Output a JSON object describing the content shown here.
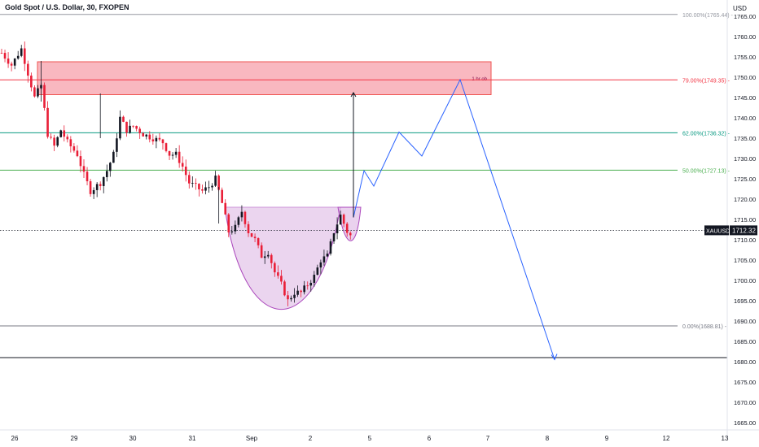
{
  "header": {
    "title": "Gold Spot / U.S. Dollar, 30, FXOPEN",
    "currency": "USD"
  },
  "price_badge": {
    "symbol": "XAUUSD",
    "price": "1712.32"
  },
  "colors": {
    "up": "#131722",
    "down": "#e91e37",
    "zone_fill": "#f7a6b0",
    "fib_100": "#9598a1",
    "fib_79": "#f23645",
    "fib_62": "#089981",
    "fib_50": "#4caf50",
    "fib_0": "#787b86",
    "cup_fill": "#e1bee7",
    "cup_stroke": "#ab47bc",
    "projection": "#2962ff"
  },
  "chart_data": {
    "type": "candlestick",
    "title": "Gold Spot / U.S. Dollar, 30, FXOPEN",
    "y_unit": "USD",
    "ylim": [
      1662.5,
      1768
    ],
    "y_ticks": [
      1665,
      1670,
      1675,
      1680,
      1685,
      1690,
      1695,
      1700,
      1705,
      1710,
      1715,
      1720,
      1725,
      1730,
      1735,
      1740,
      1745,
      1750,
      1755,
      1760,
      1765
    ],
    "x_ticks": [
      "26",
      "29",
      "30",
      "31",
      "Sep",
      "2",
      "5",
      "6",
      "7",
      "8",
      "9",
      "12",
      "13"
    ],
    "fib_levels": [
      {
        "label": "100.00%(1765.44)",
        "price": 1765.44,
        "color_key": "fib_100"
      },
      {
        "label": "79.00%(1749.35)",
        "price": 1749.35,
        "color_key": "fib_79"
      },
      {
        "label": "62.00%(1736.32)",
        "price": 1736.32,
        "color_key": "fib_62"
      },
      {
        "label": "50.00%(1727.13)",
        "price": 1727.13,
        "color_key": "fib_50"
      },
      {
        "label": "0.00%(1688.81)",
        "price": 1688.81,
        "color_key": "fib_0"
      }
    ],
    "support_line": 1681,
    "current_price": 1712.32,
    "zone": {
      "label": "1 hr ob",
      "top": 1753.8,
      "bottom": 1745.7
    },
    "close_path": [
      [
        0,
        1756
      ],
      [
        3,
        1753
      ],
      [
        6,
        1757
      ],
      [
        8,
        1751
      ],
      [
        10,
        1745
      ],
      [
        12,
        1748
      ],
      [
        14,
        1736
      ],
      [
        16,
        1733
      ],
      [
        18,
        1737
      ],
      [
        20,
        1734
      ],
      [
        23,
        1731
      ],
      [
        25,
        1726
      ],
      [
        27,
        1722
      ],
      [
        30,
        1724
      ],
      [
        32,
        1727
      ],
      [
        34,
        1731
      ],
      [
        36,
        1740
      ],
      [
        38,
        1737
      ],
      [
        40,
        1738
      ],
      [
        43,
        1736
      ],
      [
        46,
        1735
      ],
      [
        49,
        1734
      ],
      [
        51,
        1731
      ],
      [
        53,
        1731
      ],
      [
        55,
        1728
      ],
      [
        57,
        1724
      ],
      [
        59,
        1723
      ],
      [
        61,
        1722
      ],
      [
        63,
        1723
      ],
      [
        65,
        1725
      ],
      [
        67,
        1719
      ],
      [
        69,
        1712
      ],
      [
        71,
        1713
      ],
      [
        73,
        1717
      ],
      [
        75,
        1712
      ],
      [
        77,
        1710
      ],
      [
        79,
        1706
      ],
      [
        81,
        1707
      ],
      [
        83,
        1702
      ],
      [
        85,
        1699
      ],
      [
        87,
        1695
      ],
      [
        89,
        1697
      ],
      [
        91,
        1697
      ],
      [
        93,
        1699
      ],
      [
        95,
        1701
      ],
      [
        97,
        1705
      ],
      [
        99,
        1706
      ],
      [
        101,
        1712
      ],
      [
        103,
        1716
      ],
      [
        105,
        1712
      ],
      [
        106,
        1711
      ]
    ],
    "projection_path": [
      [
        1715.5
      ],
      [
        1727
      ],
      [
        1723.2
      ],
      [
        1736.5
      ],
      [
        1730.6
      ],
      [
        1749.4
      ],
      [
        1680.5
      ]
    ],
    "target_arrow": {
      "from": 1715.5,
      "to": 1746.2
    }
  }
}
